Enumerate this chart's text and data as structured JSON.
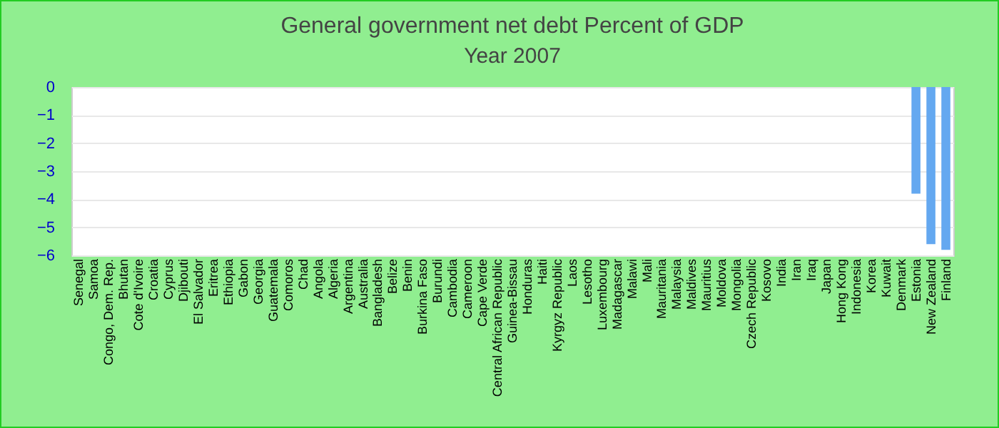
{
  "chart_data": {
    "type": "bar",
    "title": "General government net debt  Percent of GDP",
    "subtitle": "Year 2007",
    "categories": [
      "Senegal",
      "Samoa",
      "Congo, Dem. Rep.",
      "Bhutan",
      "Cote d'Ivoire",
      "Croatia",
      "Cyprus",
      "Djibouti",
      "El Salvador",
      "Eritrea",
      "Ethiopia",
      "Gabon",
      "Georgia",
      "Guatemala",
      "Comoros",
      "Chad",
      "Angola",
      "Algeria",
      "Argentina",
      "Australia",
      "Bangladesh",
      "Belize",
      "Benin",
      "Burkina Faso",
      "Burundi",
      "Cambodia",
      "Cameroon",
      "Cape Verde",
      "Central African Republic",
      "Guinea-Bissau",
      "Honduras",
      "Haiti",
      "Kyrgyz Republic",
      "Laos",
      "Lesotho",
      "Luxembourg",
      "Madagascar",
      "Malawi",
      "Mali",
      "Mauritania",
      "Malaysia",
      "Maldives",
      "Mauritius",
      "Moldova",
      "Mongolia",
      "Czech Republic",
      "Kosovo",
      "India",
      "Iran",
      "Iraq",
      "Japan",
      "Hong Kong",
      "Indonesia",
      "Korea",
      "Kuwait",
      "Denmark",
      "Estonia",
      "New Zealand",
      "Finland"
    ],
    "values": [
      null,
      null,
      null,
      null,
      null,
      null,
      null,
      null,
      null,
      null,
      null,
      null,
      null,
      null,
      null,
      null,
      null,
      null,
      null,
      null,
      null,
      null,
      null,
      null,
      null,
      null,
      null,
      null,
      null,
      null,
      null,
      null,
      null,
      null,
      null,
      null,
      null,
      null,
      null,
      null,
      null,
      null,
      null,
      null,
      null,
      null,
      null,
      null,
      null,
      null,
      null,
      null,
      null,
      null,
      null,
      null,
      -3.8,
      -5.6,
      -5.8
    ],
    "color": "#64a8f0",
    "ylim": [
      -6,
      0
    ],
    "yticks": [
      0,
      -1,
      -2,
      -3,
      -4,
      -5,
      -6
    ],
    "grid": "y"
  }
}
